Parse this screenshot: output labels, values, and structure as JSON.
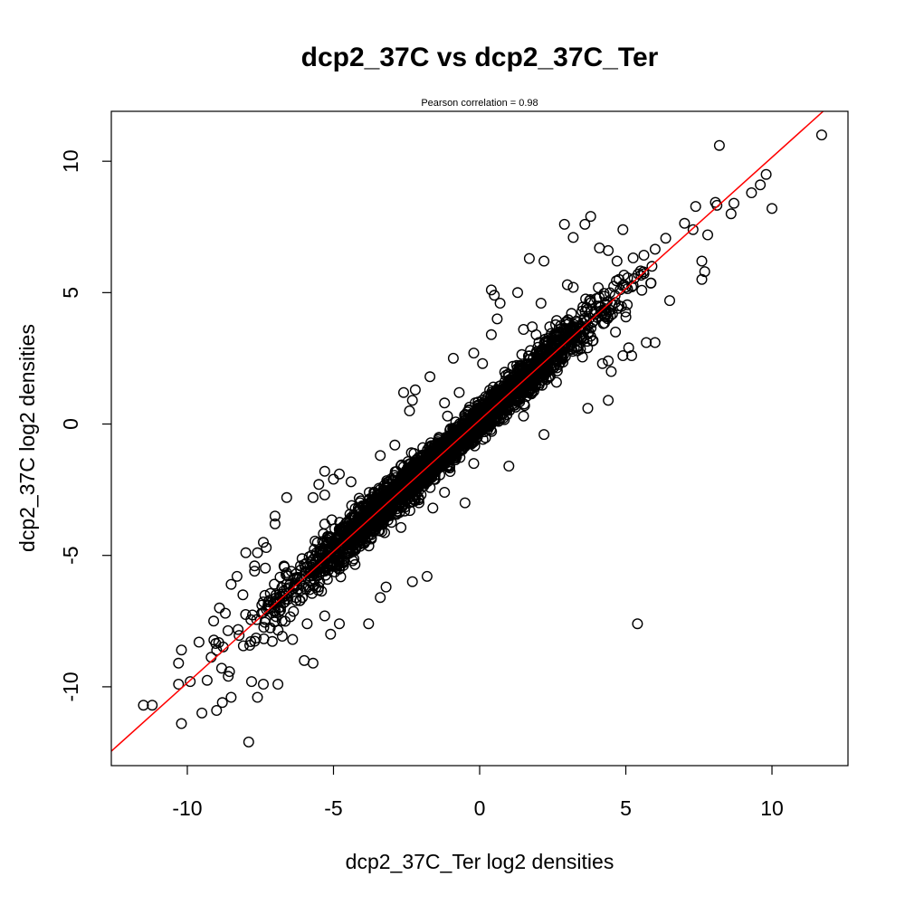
{
  "chart_data": {
    "type": "scatter",
    "title": "dcp2_37C vs dcp2_37C_Ter",
    "subtitle": "Pearson correlation =  0.98",
    "xlabel": "dcp2_37C_Ter log2 densities",
    "ylabel": "dcp2_37C log2 densities",
    "xlim": [
      -12.6,
      12.6
    ],
    "ylim": [
      -13.0,
      11.9
    ],
    "xticks": [
      -10,
      -5,
      0,
      5,
      10
    ],
    "yticks": [
      -10,
      -5,
      0,
      5,
      10
    ],
    "xtick_labels": [
      "-10",
      "-5",
      "0",
      "5",
      "10"
    ],
    "ytick_labels": [
      "-10",
      "-5",
      "0",
      "5",
      "10"
    ],
    "grid": false,
    "legend": "none",
    "point_color": "#000000",
    "line_color": "#ff0000",
    "fit_line": {
      "slope": 1.0,
      "intercept": 0.15
    },
    "series": [
      {
        "outliers": [
          [
            11.7,
            11.0
          ],
          [
            8.2,
            10.6
          ],
          [
            9.8,
            9.5
          ],
          [
            9.6,
            9.1
          ],
          [
            10.0,
            8.2
          ],
          [
            9.3,
            8.8
          ],
          [
            8.7,
            8.4
          ],
          [
            7.3,
            7.4
          ],
          [
            7.8,
            7.2
          ],
          [
            8.6,
            8.0
          ],
          [
            4.9,
            7.4
          ],
          [
            3.8,
            7.9
          ],
          [
            3.6,
            7.6
          ],
          [
            2.9,
            7.6
          ],
          [
            3.2,
            7.1
          ],
          [
            4.1,
            6.7
          ],
          [
            4.4,
            6.6
          ],
          [
            4.7,
            6.2
          ],
          [
            1.7,
            6.3
          ],
          [
            2.2,
            6.2
          ],
          [
            7.6,
            6.2
          ],
          [
            7.7,
            5.8
          ],
          [
            7.6,
            5.5
          ],
          [
            6.5,
            4.7
          ],
          [
            3.0,
            5.3
          ],
          [
            3.2,
            5.2
          ],
          [
            1.3,
            5.0
          ],
          [
            0.4,
            5.1
          ],
          [
            0.5,
            4.9
          ],
          [
            0.7,
            4.6
          ],
          [
            2.1,
            4.6
          ],
          [
            3.5,
            4.3
          ],
          [
            0.6,
            4.0
          ],
          [
            0.4,
            3.4
          ],
          [
            1.5,
            3.6
          ],
          [
            1.8,
            3.7
          ],
          [
            2.6,
            3.0
          ],
          [
            2.4,
            3.7
          ],
          [
            6.0,
            3.1
          ],
          [
            5.7,
            3.1
          ],
          [
            5.1,
            2.9
          ],
          [
            5.2,
            2.6
          ],
          [
            4.9,
            2.6
          ],
          [
            4.2,
            2.3
          ],
          [
            4.4,
            2.4
          ],
          [
            4.5,
            2.0
          ],
          [
            4.4,
            0.9
          ],
          [
            3.7,
            0.6
          ],
          [
            -0.9,
            2.5
          ],
          [
            -0.2,
            2.7
          ],
          [
            0.1,
            2.3
          ],
          [
            -1.7,
            1.8
          ],
          [
            -2.6,
            1.2
          ],
          [
            -2.2,
            1.3
          ],
          [
            -2.3,
            0.9
          ],
          [
            -2.4,
            0.5
          ],
          [
            -1.2,
            0.8
          ],
          [
            -0.7,
            1.2
          ],
          [
            -1.1,
            0.3
          ],
          [
            -2.9,
            -0.8
          ],
          [
            -3.4,
            -1.2
          ],
          [
            -5.3,
            -1.8
          ],
          [
            -4.8,
            -1.9
          ],
          [
            -5.0,
            -2.1
          ],
          [
            -5.5,
            -2.3
          ],
          [
            -5.3,
            -2.7
          ],
          [
            -5.7,
            -2.8
          ],
          [
            -6.6,
            -2.8
          ],
          [
            -4.4,
            -2.2
          ],
          [
            -1.6,
            -3.2
          ],
          [
            -0.5,
            -3.0
          ],
          [
            -1.2,
            -2.6
          ],
          [
            -0.2,
            -1.5
          ],
          [
            1.5,
            0.3
          ],
          [
            2.2,
            -0.4
          ],
          [
            1.0,
            -1.6
          ],
          [
            -7.0,
            -3.5
          ],
          [
            -7.0,
            -3.8
          ],
          [
            -7.4,
            -4.5
          ],
          [
            -7.3,
            -4.7
          ],
          [
            -7.6,
            -4.9
          ],
          [
            -8.0,
            -4.9
          ],
          [
            -7.7,
            -5.4
          ],
          [
            -7.7,
            -5.6
          ],
          [
            -8.3,
            -5.8
          ],
          [
            -8.5,
            -6.1
          ],
          [
            -8.1,
            -6.5
          ],
          [
            -8.7,
            -7.2
          ],
          [
            -8.9,
            -7.0
          ],
          [
            -9.1,
            -7.5
          ],
          [
            -9.6,
            -8.3
          ],
          [
            -10.2,
            -8.6
          ],
          [
            -10.3,
            -9.1
          ],
          [
            -9.9,
            -9.8
          ],
          [
            -10.3,
            -9.9
          ],
          [
            -8.6,
            -9.6
          ],
          [
            -7.8,
            -9.8
          ],
          [
            -7.4,
            -9.9
          ],
          [
            -7.6,
            -10.4
          ],
          [
            -6.9,
            -9.9
          ],
          [
            -8.5,
            -10.4
          ],
          [
            -8.8,
            -10.6
          ],
          [
            -9.0,
            -10.9
          ],
          [
            -9.5,
            -11.0
          ],
          [
            -10.2,
            -11.4
          ],
          [
            -11.2,
            -10.7
          ],
          [
            -11.5,
            -10.7
          ],
          [
            -7.9,
            -12.1
          ],
          [
            -6.0,
            -9.0
          ],
          [
            -5.7,
            -9.1
          ],
          [
            -5.1,
            -8.0
          ],
          [
            -6.4,
            -8.2
          ],
          [
            -4.8,
            -7.6
          ],
          [
            -5.3,
            -7.3
          ],
          [
            -5.9,
            -7.6
          ],
          [
            -3.8,
            -7.6
          ],
          [
            -3.4,
            -6.6
          ],
          [
            -3.2,
            -6.2
          ],
          [
            -2.3,
            -6.0
          ],
          [
            -1.8,
            -5.8
          ],
          [
            5.4,
            -7.6
          ]
        ]
      }
    ]
  }
}
